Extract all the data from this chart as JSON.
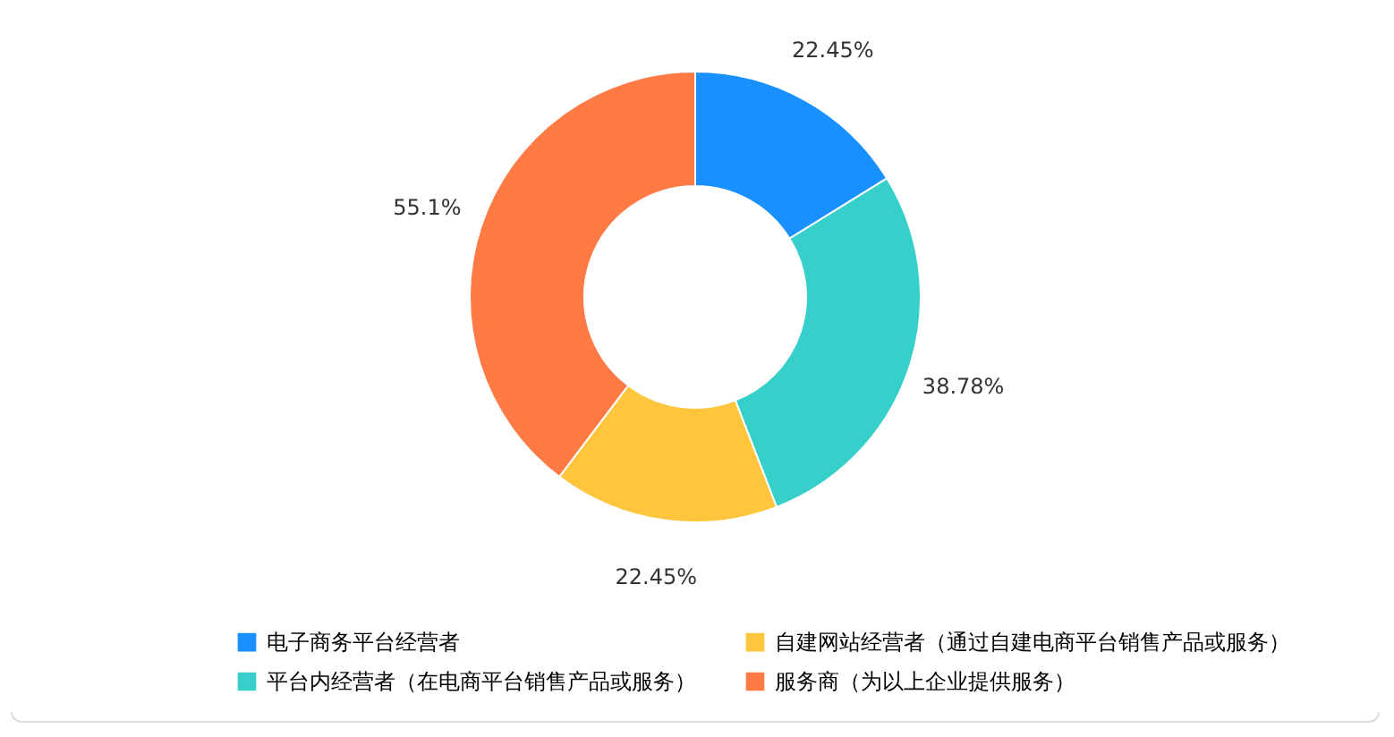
{
  "chart_data": {
    "type": "donut",
    "categories": [
      "电子商务平台经营者",
      "平台内经营者（在电商平台销售产品或服务）",
      "自建网站经营者（通过自建电商平台销售产品或服务）",
      "服务商（为以上企业提供服务）"
    ],
    "values": [
      22.45,
      38.78,
      22.45,
      55.1
    ],
    "value_labels": [
      "22.45%",
      "38.78%",
      "22.45%",
      "55.1%"
    ],
    "colors": [
      "#1890ff",
      "#36cfc9",
      "#ffc53d",
      "#ff7a45"
    ],
    "legend": "bottom"
  }
}
